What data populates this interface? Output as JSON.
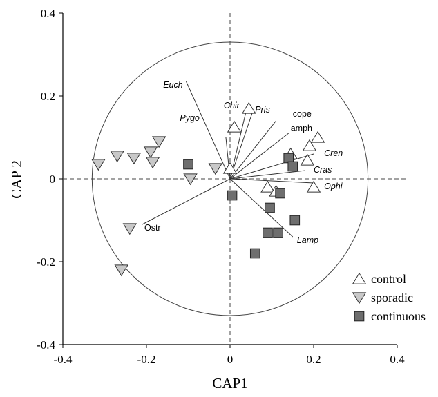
{
  "chart_data": {
    "type": "scatter",
    "xlabel": "CAP1",
    "ylabel": "CAP 2",
    "xlim": [
      -0.4,
      0.4
    ],
    "ylim": [
      -0.4,
      0.4
    ],
    "xticks": [
      -0.4,
      -0.2,
      0,
      0.2,
      0.4
    ],
    "yticks": [
      -0.4,
      -0.2,
      0,
      0.2,
      0.4
    ],
    "x_tick_labels": [
      "-0.4",
      "-0.2",
      "0",
      "0.2",
      "0.4"
    ],
    "y_tick_labels": [
      "-0.4",
      "-0.2",
      "0",
      "0.2",
      "0.4"
    ],
    "grid": false,
    "legend_position": "bottom-right",
    "circle": {
      "center": [
        0,
        0
      ],
      "radius": 0.33
    },
    "series": [
      {
        "name": "control",
        "marker": "triangle-up",
        "color": "#ffffff",
        "points": [
          [
            0.045,
            0.17
          ],
          [
            0.01,
            0.125
          ],
          [
            0.0,
            0.025
          ],
          [
            0.145,
            0.06
          ],
          [
            0.21,
            0.1
          ],
          [
            0.19,
            0.08
          ],
          [
            0.185,
            0.045
          ],
          [
            0.09,
            -0.02
          ],
          [
            0.11,
            -0.03
          ],
          [
            0.2,
            -0.02
          ]
        ]
      },
      {
        "name": "sporadic",
        "marker": "triangle-down",
        "color": "#c8c8c8",
        "points": [
          [
            -0.315,
            0.035
          ],
          [
            -0.27,
            0.055
          ],
          [
            -0.23,
            0.05
          ],
          [
            -0.19,
            0.065
          ],
          [
            -0.17,
            0.09
          ],
          [
            -0.185,
            0.04
          ],
          [
            -0.095,
            0.0
          ],
          [
            -0.035,
            0.025
          ],
          [
            -0.24,
            -0.12
          ],
          [
            -0.26,
            -0.22
          ]
        ]
      },
      {
        "name": "continuous",
        "marker": "square",
        "color": "#6e6e6e",
        "points": [
          [
            -0.1,
            0.035
          ],
          [
            0.005,
            -0.04
          ],
          [
            0.14,
            0.05
          ],
          [
            0.15,
            0.03
          ],
          [
            0.12,
            -0.035
          ],
          [
            0.095,
            -0.07
          ],
          [
            0.155,
            -0.1
          ],
          [
            0.09,
            -0.13
          ],
          [
            0.115,
            -0.13
          ],
          [
            0.06,
            -0.18
          ]
        ]
      }
    ],
    "vectors": [
      {
        "label": "Euch",
        "italic": true,
        "end": [
          -0.105,
          0.235
        ],
        "label_pos": [
          -0.16,
          0.22
        ]
      },
      {
        "label": "Pygo",
        "italic": true,
        "end": [
          -0.01,
          0.1
        ],
        "label_pos": [
          -0.12,
          0.14
        ]
      },
      {
        "label": "Chir",
        "italic": true,
        "end": [
          0.04,
          0.17
        ],
        "label_pos": [
          -0.015,
          0.17
        ]
      },
      {
        "label": "Pris",
        "italic": true,
        "end": [
          0.055,
          0.165
        ],
        "label_pos": [
          0.06,
          0.16
        ]
      },
      {
        "label": "cope",
        "italic": false,
        "end": [
          0.11,
          0.14
        ],
        "label_pos": [
          0.15,
          0.15
        ]
      },
      {
        "label": "amph",
        "italic": false,
        "end": [
          0.14,
          0.11
        ],
        "label_pos": [
          0.145,
          0.115
        ]
      },
      {
        "label": "Cren",
        "italic": true,
        "end": [
          0.2,
          0.06
        ],
        "label_pos": [
          0.225,
          0.055
        ]
      },
      {
        "label": "Cras",
        "italic": true,
        "end": [
          0.18,
          0.02
        ],
        "label_pos": [
          0.2,
          0.015
        ]
      },
      {
        "label": "Ophi",
        "italic": true,
        "end": [
          0.2,
          -0.01
        ],
        "label_pos": [
          0.225,
          -0.025
        ]
      },
      {
        "label": "Lamp",
        "italic": true,
        "end": [
          0.15,
          -0.14
        ],
        "label_pos": [
          0.16,
          -0.155
        ]
      },
      {
        "label": "Ostr",
        "italic": false,
        "end": [
          -0.21,
          -0.11
        ],
        "label_pos": [
          -0.205,
          -0.125
        ]
      }
    ]
  }
}
